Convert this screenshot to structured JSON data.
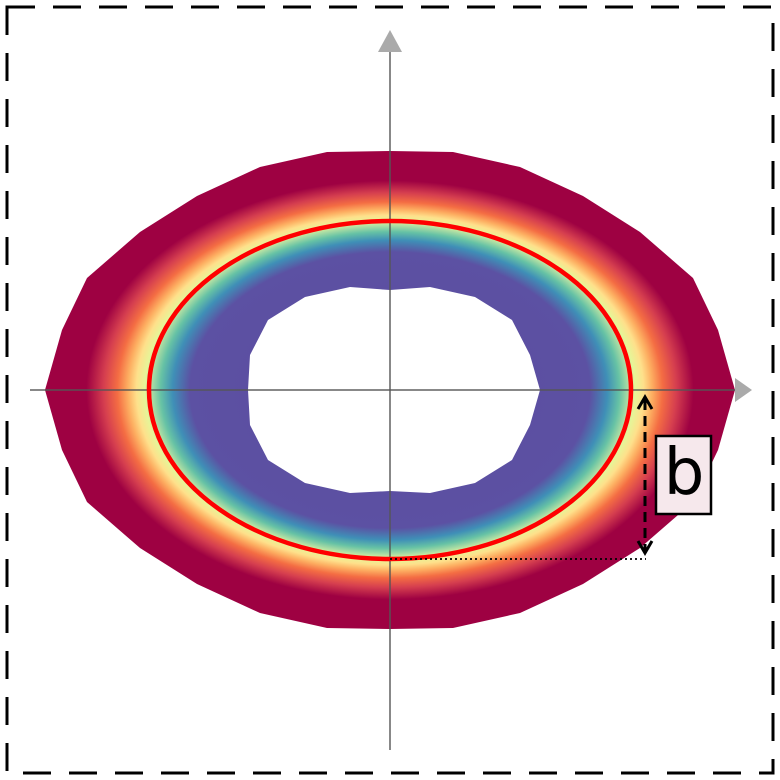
{
  "figure": {
    "annotation_label": "b",
    "colors": {
      "background": "#ffffff",
      "outer_gradient": [
        "#5a4a9e",
        "#5c51a3",
        "#3f8fb7",
        "#66c2a5",
        "#abdda4",
        "#e6f598",
        "#fee08b",
        "#fdae61",
        "#f46d43",
        "#d53e4f",
        "#9e0142"
      ],
      "ellipse_outline": "#ff0000",
      "axes": "#888888",
      "arrowheads": "#aaaaaa",
      "annotation_arrow": "#000000",
      "label_box_fill": "#f6e8ec",
      "label_box_border": "#000000",
      "frame_dash": "#000000"
    },
    "icons": {
      "x_axis_head": "triangle-right",
      "y_axis_head": "triangle-up",
      "measure_arrow": "double-arrow-vertical"
    }
  }
}
